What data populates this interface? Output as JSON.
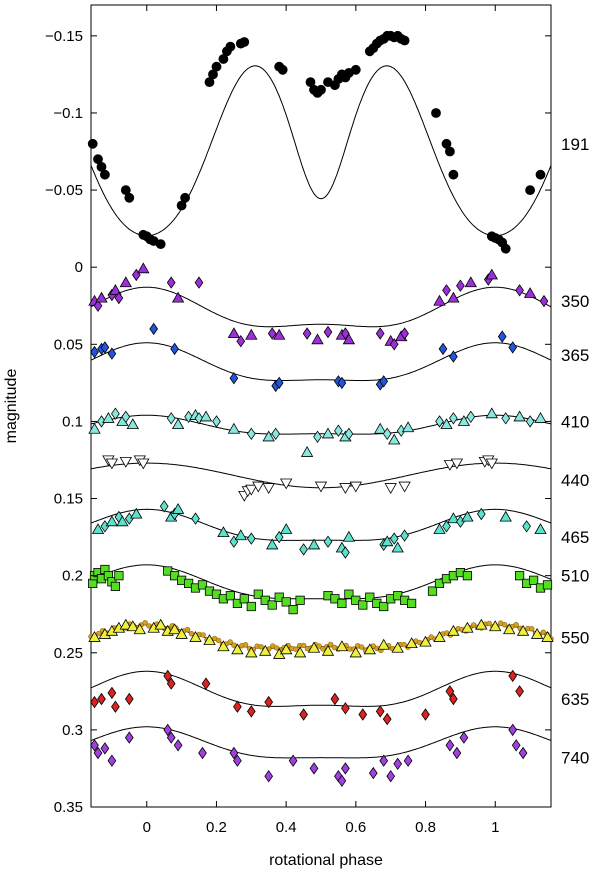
{
  "chart_data": {
    "type": "scatter",
    "title": "",
    "xlabel": "rotational phase",
    "ylabel": "magnitude",
    "xlim": [
      -0.16,
      1.16
    ],
    "ylim": [
      0.35,
      -0.17
    ],
    "y_inverted": true,
    "grid": false,
    "x_ticks": [
      0,
      0.2,
      0.4,
      0.6,
      0.8,
      1
    ],
    "x_tick_labels": [
      "0",
      "0.2",
      "0.4",
      "0.6",
      "0.8",
      "1"
    ],
    "y_ticks": [
      -0.15,
      -0.1,
      -0.05,
      0,
      0.05,
      0.1,
      0.15,
      0.2,
      0.25,
      0.3,
      0.35
    ],
    "y_tick_labels": [
      "−0.15",
      "−0.1",
      "−0.05",
      "0",
      "0.05",
      "0.1",
      "0.15",
      "0.2",
      "0.25",
      "0.3",
      "0.35"
    ],
    "series": [
      {
        "name": "191",
        "label_y": -0.08,
        "marker": "circle",
        "color": "#000000",
        "curve": {
          "offset": -0.097,
          "terms": [
            {
              "a": 0.048,
              "n": 1,
              "phase_max": 0.5
            },
            {
              "a": 0.022,
              "n": 2,
              "phase_max": 0.33
            },
            {
              "a": 0.013,
              "n": 3,
              "phase_max": 0.5
            }
          ]
        },
        "x": [
          -0.155,
          -0.14,
          -0.13,
          -0.12,
          -0.06,
          -0.05,
          -0.01,
          0,
          0.01,
          0.02,
          0.04,
          0.1,
          0.11,
          0.18,
          0.19,
          0.2,
          0.22,
          0.23,
          0.24,
          0.27,
          0.28,
          0.38,
          0.39,
          0.47,
          0.48,
          0.49,
          0.5,
          0.52,
          0.54,
          0.55,
          0.56,
          0.57,
          0.58,
          0.6,
          0.64,
          0.65,
          0.66,
          0.67,
          0.68,
          0.69,
          0.7,
          0.71,
          0.72,
          0.73,
          0.74,
          0.83,
          0.86,
          0.87,
          0.88,
          0.99,
          1,
          1.01,
          1.02,
          1.03,
          1.1,
          1.13
        ],
        "y": [
          -0.08,
          -0.07,
          -0.065,
          -0.06,
          -0.05,
          -0.045,
          -0.021,
          -0.02,
          -0.018,
          -0.017,
          -0.015,
          -0.04,
          -0.045,
          -0.12,
          -0.125,
          -0.13,
          -0.135,
          -0.14,
          -0.143,
          -0.145,
          -0.146,
          -0.13,
          -0.128,
          -0.12,
          -0.115,
          -0.113,
          -0.115,
          -0.12,
          -0.118,
          -0.122,
          -0.125,
          -0.123,
          -0.126,
          -0.128,
          -0.14,
          -0.142,
          -0.145,
          -0.147,
          -0.148,
          -0.15,
          -0.15,
          -0.149,
          -0.15,
          -0.148,
          -0.147,
          -0.1,
          -0.08,
          -0.075,
          -0.06,
          -0.02,
          -0.019,
          -0.018,
          -0.016,
          -0.012,
          -0.05,
          -0.06
        ]
      },
      {
        "name": "350",
        "label_y": 0.022,
        "marker": "mix",
        "color": "#9b30d9",
        "curve": {
          "offset": 0.03,
          "terms": [
            {
              "a": 0.012,
              "n": 1,
              "phase_max": 0
            },
            {
              "a": 0.005,
              "n": 2,
              "phase_max": 0.0
            }
          ]
        },
        "x": [
          -0.15,
          -0.14,
          -0.13,
          -0.1,
          -0.09,
          -0.08,
          -0.06,
          -0.03,
          -0.01,
          0.07,
          0.09,
          0.15,
          0.25,
          0.27,
          0.3,
          0.36,
          0.38,
          0.46,
          0.49,
          0.52,
          0.56,
          0.57,
          0.58,
          0.67,
          0.7,
          0.71,
          0.73,
          0.74,
          0.84,
          0.86,
          0.88,
          0.9,
          0.93,
          0.98,
          0.99,
          1.07,
          1.1,
          1.14
        ],
        "y": [
          0.022,
          0.025,
          0.02,
          0.018,
          0.015,
          0.02,
          0.01,
          0.005,
          0.001,
          0.01,
          0.02,
          0.01,
          0.043,
          0.048,
          0.044,
          0.043,
          0.044,
          0.043,
          0.047,
          0.042,
          0.044,
          0.043,
          0.047,
          0.043,
          0.048,
          0.05,
          0.045,
          0.043,
          0.022,
          0.015,
          0.02,
          0.012,
          0.01,
          0.008,
          0.005,
          0.015,
          0.017,
          0.022
        ]
      },
      {
        "name": "365",
        "label_y": 0.057,
        "marker": "diamond",
        "color": "#2255dd",
        "curve": {
          "offset": 0.065,
          "terms": [
            {
              "a": 0.012,
              "n": 1,
              "phase_max": 0
            },
            {
              "a": 0.004,
              "n": 2,
              "phase_max": 0.0
            }
          ]
        },
        "x": [
          -0.15,
          -0.13,
          -0.12,
          -0.1,
          0.02,
          0.08,
          0.25,
          0.37,
          0.38,
          0.55,
          0.56,
          0.67,
          0.68,
          0.85,
          0.88,
          1.02,
          1.05
        ],
        "y": [
          0.055,
          0.053,
          0.052,
          0.056,
          0.04,
          0.053,
          0.072,
          0.077,
          0.075,
          0.074,
          0.075,
          0.076,
          0.074,
          0.053,
          0.058,
          0.045,
          0.052
        ]
      },
      {
        "name": "410",
        "label_y": 0.1,
        "marker": "mix",
        "color": "#88e8e0",
        "curve": {
          "offset": 0.104,
          "terms": [
            {
              "a": 0.006,
              "n": 1,
              "phase_max": 0
            },
            {
              "a": 0.002,
              "n": 2,
              "phase_max": 0.0
            }
          ]
        },
        "x": [
          -0.15,
          -0.13,
          -0.11,
          -0.09,
          -0.07,
          -0.06,
          -0.04,
          0.07,
          0.09,
          0.12,
          0.14,
          0.15,
          0.17,
          0.2,
          0.25,
          0.3,
          0.35,
          0.37,
          0.46,
          0.49,
          0.52,
          0.55,
          0.57,
          0.58,
          0.67,
          0.69,
          0.71,
          0.73,
          0.75,
          0.84,
          0.86,
          0.88,
          0.91,
          0.93,
          0.99,
          1.03,
          1.07,
          1.1,
          1.13
        ],
        "y": [
          0.105,
          0.1,
          0.098,
          0.095,
          0.1,
          0.097,
          0.102,
          0.098,
          0.102,
          0.097,
          0.096,
          0.098,
          0.097,
          0.1,
          0.105,
          0.108,
          0.11,
          0.108,
          0.12,
          0.11,
          0.108,
          0.106,
          0.11,
          0.108,
          0.105,
          0.108,
          0.112,
          0.106,
          0.104,
          0.1,
          0.102,
          0.098,
          0.1,
          0.097,
          0.095,
          0.098,
          0.097,
          0.1,
          0.098
        ]
      },
      {
        "name": "440",
        "label_y": 0.138,
        "marker": "down-triangle",
        "color": "#ffffff",
        "curve": {
          "offset": 0.135,
          "terms": [
            {
              "a": 0.008,
              "n": 1,
              "phase_max": 0
            }
          ]
        },
        "x": [
          -0.11,
          -0.1,
          -0.06,
          -0.02,
          -0.01,
          0.28,
          0.29,
          0.3,
          0.32,
          0.35,
          0.4,
          0.5,
          0.57,
          0.6,
          0.7,
          0.74,
          0.87,
          0.89,
          0.97,
          0.98,
          0.99
        ],
        "y": [
          0.125,
          0.127,
          0.126,
          0.125,
          0.127,
          0.148,
          0.145,
          0.144,
          0.142,
          0.143,
          0.14,
          0.142,
          0.143,
          0.142,
          0.143,
          0.142,
          0.128,
          0.127,
          0.126,
          0.125,
          0.127
        ]
      },
      {
        "name": "465",
        "label_y": 0.175,
        "marker": "mix",
        "color": "#5de0cc",
        "curve": {
          "offset": 0.17,
          "terms": [
            {
              "a": 0.01,
              "n": 1,
              "phase_max": 0
            },
            {
              "a": 0.003,
              "n": 2,
              "phase_max": 0.0
            }
          ]
        },
        "x": [
          -0.14,
          -0.12,
          -0.1,
          -0.08,
          -0.07,
          -0.05,
          -0.03,
          0.05,
          0.07,
          0.08,
          0.09,
          0.14,
          0.22,
          0.25,
          0.27,
          0.3,
          0.36,
          0.38,
          0.4,
          0.45,
          0.48,
          0.52,
          0.56,
          0.57,
          0.58,
          0.68,
          0.69,
          0.71,
          0.72,
          0.74,
          0.84,
          0.86,
          0.88,
          0.9,
          0.92,
          0.96,
          1.03,
          1.09,
          1.13
        ],
        "y": [
          0.17,
          0.168,
          0.165,
          0.162,
          0.165,
          0.163,
          0.16,
          0.155,
          0.162,
          0.16,
          0.157,
          0.163,
          0.172,
          0.178,
          0.174,
          0.176,
          0.18,
          0.175,
          0.17,
          0.183,
          0.18,
          0.178,
          0.182,
          0.185,
          0.175,
          0.18,
          0.178,
          0.176,
          0.182,
          0.174,
          0.17,
          0.168,
          0.163,
          0.165,
          0.162,
          0.16,
          0.162,
          0.168,
          0.17
        ]
      },
      {
        "name": "510",
        "label_y": 0.2,
        "marker": "square",
        "color": "#55dd22",
        "curve": {
          "offset": 0.207,
          "terms": [
            {
              "a": 0.011,
              "n": 1,
              "phase_max": 0
            },
            {
              "a": 0.003,
              "n": 2,
              "phase_max": 0.0
            }
          ]
        },
        "x": [
          -0.155,
          -0.15,
          -0.14,
          -0.13,
          -0.12,
          -0.11,
          -0.1,
          -0.09,
          -0.08,
          0.06,
          0.08,
          0.1,
          0.12,
          0.14,
          0.16,
          0.18,
          0.2,
          0.22,
          0.24,
          0.26,
          0.28,
          0.3,
          0.32,
          0.34,
          0.36,
          0.38,
          0.4,
          0.42,
          0.44,
          0.52,
          0.54,
          0.56,
          0.58,
          0.6,
          0.62,
          0.64,
          0.66,
          0.68,
          0.7,
          0.72,
          0.74,
          0.76,
          0.82,
          0.84,
          0.86,
          0.88,
          0.9,
          0.92,
          1.07,
          1.09,
          1.11,
          1.13,
          1.15
        ],
        "y": [
          0.205,
          0.2,
          0.198,
          0.202,
          0.196,
          0.2,
          0.204,
          0.207,
          0.2,
          0.197,
          0.2,
          0.203,
          0.205,
          0.208,
          0.206,
          0.21,
          0.212,
          0.215,
          0.213,
          0.218,
          0.215,
          0.22,
          0.212,
          0.216,
          0.219,
          0.214,
          0.217,
          0.222,
          0.216,
          0.213,
          0.215,
          0.218,
          0.212,
          0.216,
          0.219,
          0.214,
          0.218,
          0.22,
          0.215,
          0.213,
          0.216,
          0.218,
          0.21,
          0.205,
          0.202,
          0.2,
          0.198,
          0.2,
          0.2,
          0.205,
          0.203,
          0.208,
          0.206
        ]
      },
      {
        "name": "550",
        "label_y": 0.24,
        "marker": "up-triangle",
        "color": "#eef040",
        "curve": {
          "offset": 0.242,
          "terms": [
            {
              "a": 0.007,
              "n": 1,
              "phase_max": 0
            },
            {
              "a": 0.003,
              "n": 2,
              "phase_max": 0.0
            }
          ]
        },
        "x": [
          -0.15,
          -0.12,
          -0.1,
          -0.08,
          -0.06,
          -0.04,
          -0.02,
          0.02,
          0.04,
          0.06,
          0.08,
          0.1,
          0.14,
          0.18,
          0.22,
          0.26,
          0.3,
          0.34,
          0.38,
          0.4,
          0.44,
          0.48,
          0.52,
          0.56,
          0.6,
          0.64,
          0.68,
          0.72,
          0.76,
          0.8,
          0.84,
          0.88,
          0.92,
          0.96,
          1.0,
          1.04,
          1.08,
          1.12,
          1.15
        ],
        "y": [
          0.24,
          0.238,
          0.236,
          0.234,
          0.232,
          0.233,
          0.235,
          0.234,
          0.232,
          0.236,
          0.235,
          0.238,
          0.24,
          0.242,
          0.246,
          0.248,
          0.25,
          0.249,
          0.251,
          0.248,
          0.25,
          0.247,
          0.249,
          0.246,
          0.25,
          0.248,
          0.245,
          0.247,
          0.244,
          0.243,
          0.24,
          0.236,
          0.234,
          0.232,
          0.233,
          0.235,
          0.236,
          0.238,
          0.24
        ]
      },
      {
        "name": "635",
        "label_y": 0.28,
        "marker": "diamond",
        "color": "#dd2222",
        "curve": {
          "offset": 0.277,
          "terms": [
            {
              "a": 0.011,
              "n": 1,
              "phase_max": 0
            },
            {
              "a": 0.004,
              "n": 2,
              "phase_max": 0.0
            }
          ]
        },
        "x": [
          -0.15,
          -0.13,
          -0.1,
          -0.09,
          -0.05,
          0.06,
          0.07,
          0.17,
          0.26,
          0.3,
          0.35,
          0.45,
          0.54,
          0.57,
          0.62,
          0.67,
          0.69,
          0.8,
          0.87,
          0.88,
          1.05,
          1.07
        ],
        "y": [
          0.282,
          0.28,
          0.276,
          0.285,
          0.28,
          0.265,
          0.27,
          0.27,
          0.285,
          0.288,
          0.282,
          0.29,
          0.28,
          0.286,
          0.29,
          0.288,
          0.293,
          0.29,
          0.275,
          0.28,
          0.265,
          0.275
        ]
      },
      {
        "name": "740",
        "label_y": 0.318,
        "marker": "diamond",
        "color": "#a040e0",
        "curve": {
          "offset": 0.311,
          "terms": [
            {
              "a": 0.01,
              "n": 1,
              "phase_max": 0
            },
            {
              "a": 0.003,
              "n": 2,
              "phase_max": 0.0
            }
          ]
        },
        "x": [
          -0.15,
          -0.14,
          -0.12,
          -0.1,
          -0.05,
          0.06,
          0.07,
          0.09,
          0.16,
          0.25,
          0.26,
          0.35,
          0.42,
          0.48,
          0.55,
          0.56,
          0.57,
          0.65,
          0.68,
          0.7,
          0.72,
          0.75,
          0.87,
          0.89,
          0.91,
          1.05,
          1.06,
          1.08
        ],
        "y": [
          0.31,
          0.315,
          0.312,
          0.32,
          0.305,
          0.3,
          0.305,
          0.31,
          0.315,
          0.315,
          0.32,
          0.33,
          0.32,
          0.325,
          0.33,
          0.333,
          0.325,
          0.328,
          0.32,
          0.33,
          0.322,
          0.32,
          0.31,
          0.315,
          0.305,
          0.3,
          0.31,
          0.315
        ]
      }
    ],
    "overlay_550": {
      "marker": "small-circle",
      "color": "#d8a020",
      "offset": 0.242,
      "terms": [
        {
          "a": 0.007,
          "n": 1,
          "phase_max": 0
        },
        {
          "a": 0.003,
          "n": 2,
          "phase_max": 0.0
        }
      ],
      "count": 120
    }
  }
}
